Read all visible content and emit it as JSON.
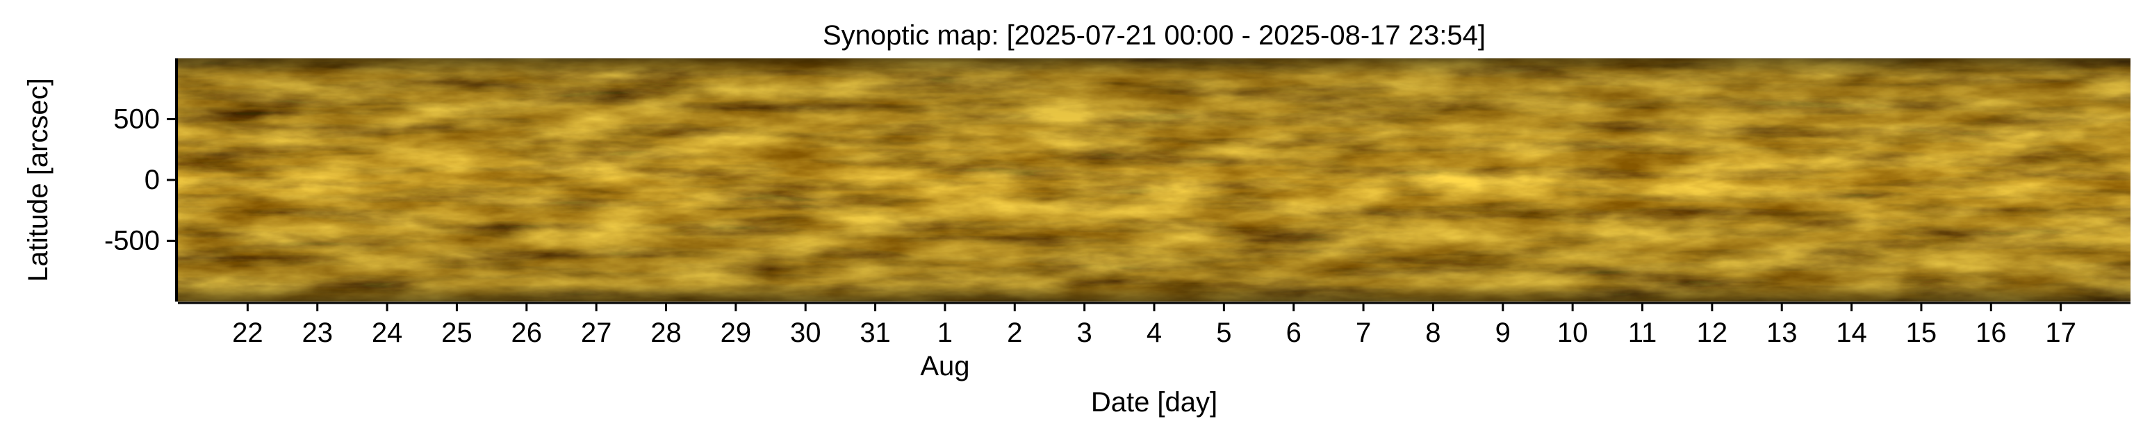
{
  "chart_data": {
    "type": "heatmap",
    "title": "Synoptic map: [2025-07-21 00:00 - 2025-08-17 23:54]",
    "xlabel": "Date [day]",
    "ylabel": "Latitude [arcsec]",
    "colormap": "solar EUV gold (black to yellow)",
    "colors": {
      "dark": "#160d00",
      "mid": "#8a5a00",
      "bright": "#ffd84a"
    },
    "xlim": [
      "2025-07-21 00:00",
      "2025-08-17 23:54"
    ],
    "ylim": [
      -1000,
      1000
    ],
    "y_ticks": [
      {
        "value": 500,
        "label": "500"
      },
      {
        "value": 0,
        "label": "0"
      },
      {
        "value": -500,
        "label": "-500"
      }
    ],
    "x_ticks": [
      {
        "day": 1,
        "label": "22"
      },
      {
        "day": 2,
        "label": "23"
      },
      {
        "day": 3,
        "label": "24"
      },
      {
        "day": 4,
        "label": "25"
      },
      {
        "day": 5,
        "label": "26"
      },
      {
        "day": 6,
        "label": "27"
      },
      {
        "day": 7,
        "label": "28"
      },
      {
        "day": 8,
        "label": "29"
      },
      {
        "day": 9,
        "label": "30"
      },
      {
        "day": 10,
        "label": "31"
      },
      {
        "day": 11,
        "label": "1"
      },
      {
        "day": 12,
        "label": "2"
      },
      {
        "day": 13,
        "label": "3"
      },
      {
        "day": 14,
        "label": "4"
      },
      {
        "day": 15,
        "label": "5"
      },
      {
        "day": 16,
        "label": "6"
      },
      {
        "day": 17,
        "label": "7"
      },
      {
        "day": 18,
        "label": "8"
      },
      {
        "day": 19,
        "label": "9"
      },
      {
        "day": 20,
        "label": "10"
      },
      {
        "day": 21,
        "label": "11"
      },
      {
        "day": 22,
        "label": "12"
      },
      {
        "day": 23,
        "label": "13"
      },
      {
        "day": 24,
        "label": "14"
      },
      {
        "day": 25,
        "label": "15"
      },
      {
        "day": 26,
        "label": "16"
      },
      {
        "day": 27,
        "label": "17"
      }
    ],
    "month_label": {
      "day": 11,
      "label": "Aug"
    },
    "grid": false,
    "legend": "none"
  }
}
